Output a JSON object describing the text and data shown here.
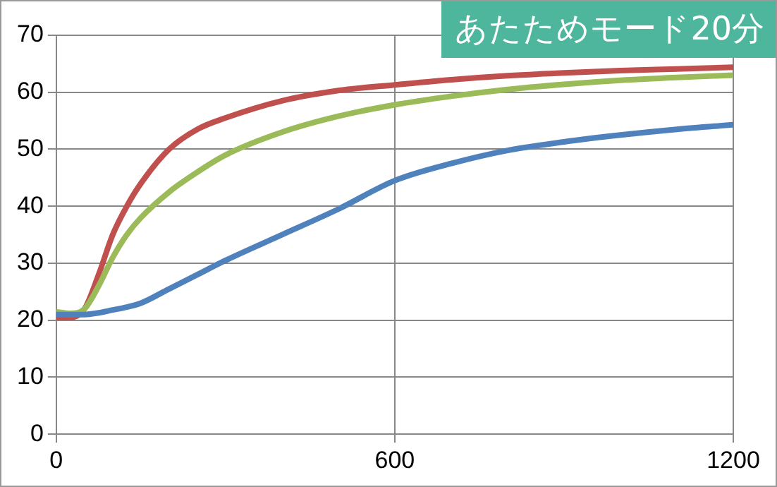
{
  "chart_data": {
    "type": "line",
    "title": "あたためモード20分",
    "x": [
      0,
      25,
      50,
      75,
      100,
      125,
      150,
      200,
      250,
      300,
      400,
      500,
      600,
      700,
      800,
      900,
      1000,
      1100,
      1200
    ],
    "series": [
      {
        "color": "#c0504d",
        "values": [
          20.5,
          20.5,
          22,
          28,
          35,
          40,
          44,
          50,
          53.5,
          55.5,
          58.5,
          60.3,
          61.3,
          62.2,
          62.9,
          63.4,
          63.8,
          64.1,
          64.4
        ]
      },
      {
        "color": "#9bbb59",
        "values": [
          21.5,
          21.2,
          22,
          26,
          31,
          35,
          38,
          42.5,
          46,
          49,
          53,
          55.8,
          57.8,
          59.3,
          60.5,
          61.4,
          62.1,
          62.6,
          63
        ]
      },
      {
        "color": "#4f81bd",
        "values": [
          21,
          21,
          21,
          21.3,
          21.8,
          22.3,
          23,
          25.5,
          28,
          30.5,
          35,
          39.5,
          44.5,
          47.5,
          49.8,
          51.3,
          52.5,
          53.5,
          54.3
        ]
      }
    ],
    "xlim": [
      0,
      1200
    ],
    "xticks": [
      0,
      600,
      1200
    ],
    "ylim": [
      0,
      70
    ],
    "yticks": [
      0,
      10,
      20,
      30,
      40,
      50,
      60,
      70
    ],
    "grid": true,
    "legend": false,
    "marker": "none",
    "line_style": "solid"
  }
}
